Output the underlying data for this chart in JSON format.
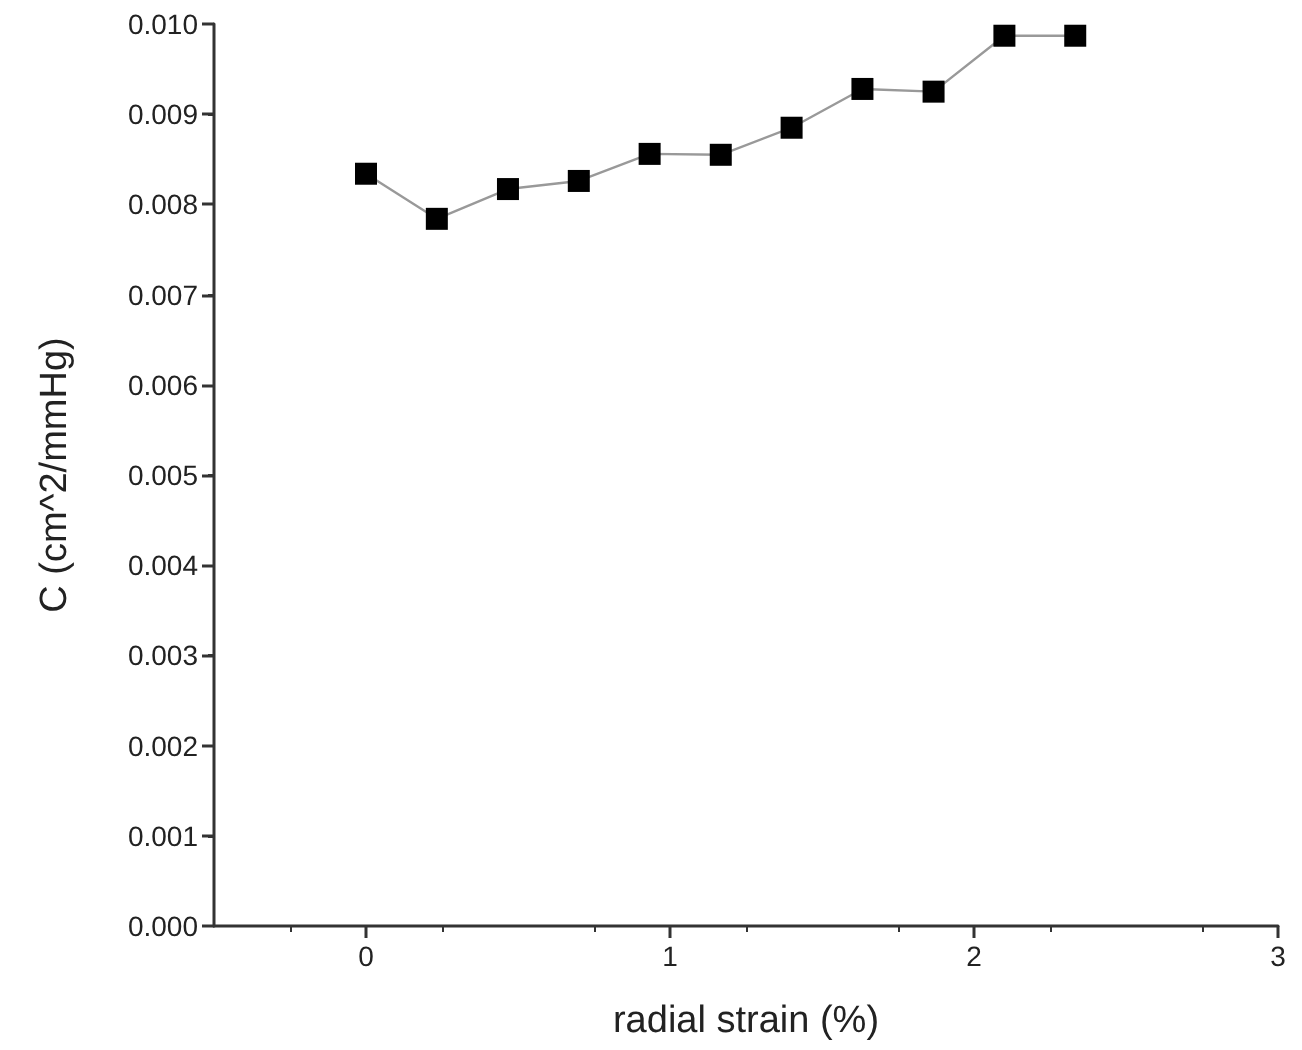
{
  "chart_data": {
    "type": "line",
    "xlabel": "radial strain (%)",
    "ylabel": "C (cm^2/mmHg)",
    "x": [
      0,
      0.233,
      0.467,
      0.7,
      0.933,
      1.167,
      1.4,
      1.633,
      1.867,
      2.1,
      2.333
    ],
    "series": [
      {
        "color": "#000000",
        "values": [
          0.00834,
          0.00784,
          0.00817,
          0.00826,
          0.00856,
          0.00855,
          0.00885,
          0.00928,
          0.00925,
          0.00987,
          0.00987
        ]
      }
    ],
    "xlim": [
      -0.5,
      3
    ],
    "xticks": [
      0,
      1,
      2,
      3
    ],
    "ylim": [
      0,
      0.01
    ],
    "yticks": [
      {
        "value": 0,
        "label": "0.000"
      },
      0.001,
      0.002,
      0.003,
      0.004,
      0.005,
      0.006,
      0.007,
      0.008,
      0.009,
      {
        "value": 0.01,
        "label": "0.010"
      }
    ],
    "marker": "square",
    "line_style": "solid",
    "grid": false
  }
}
